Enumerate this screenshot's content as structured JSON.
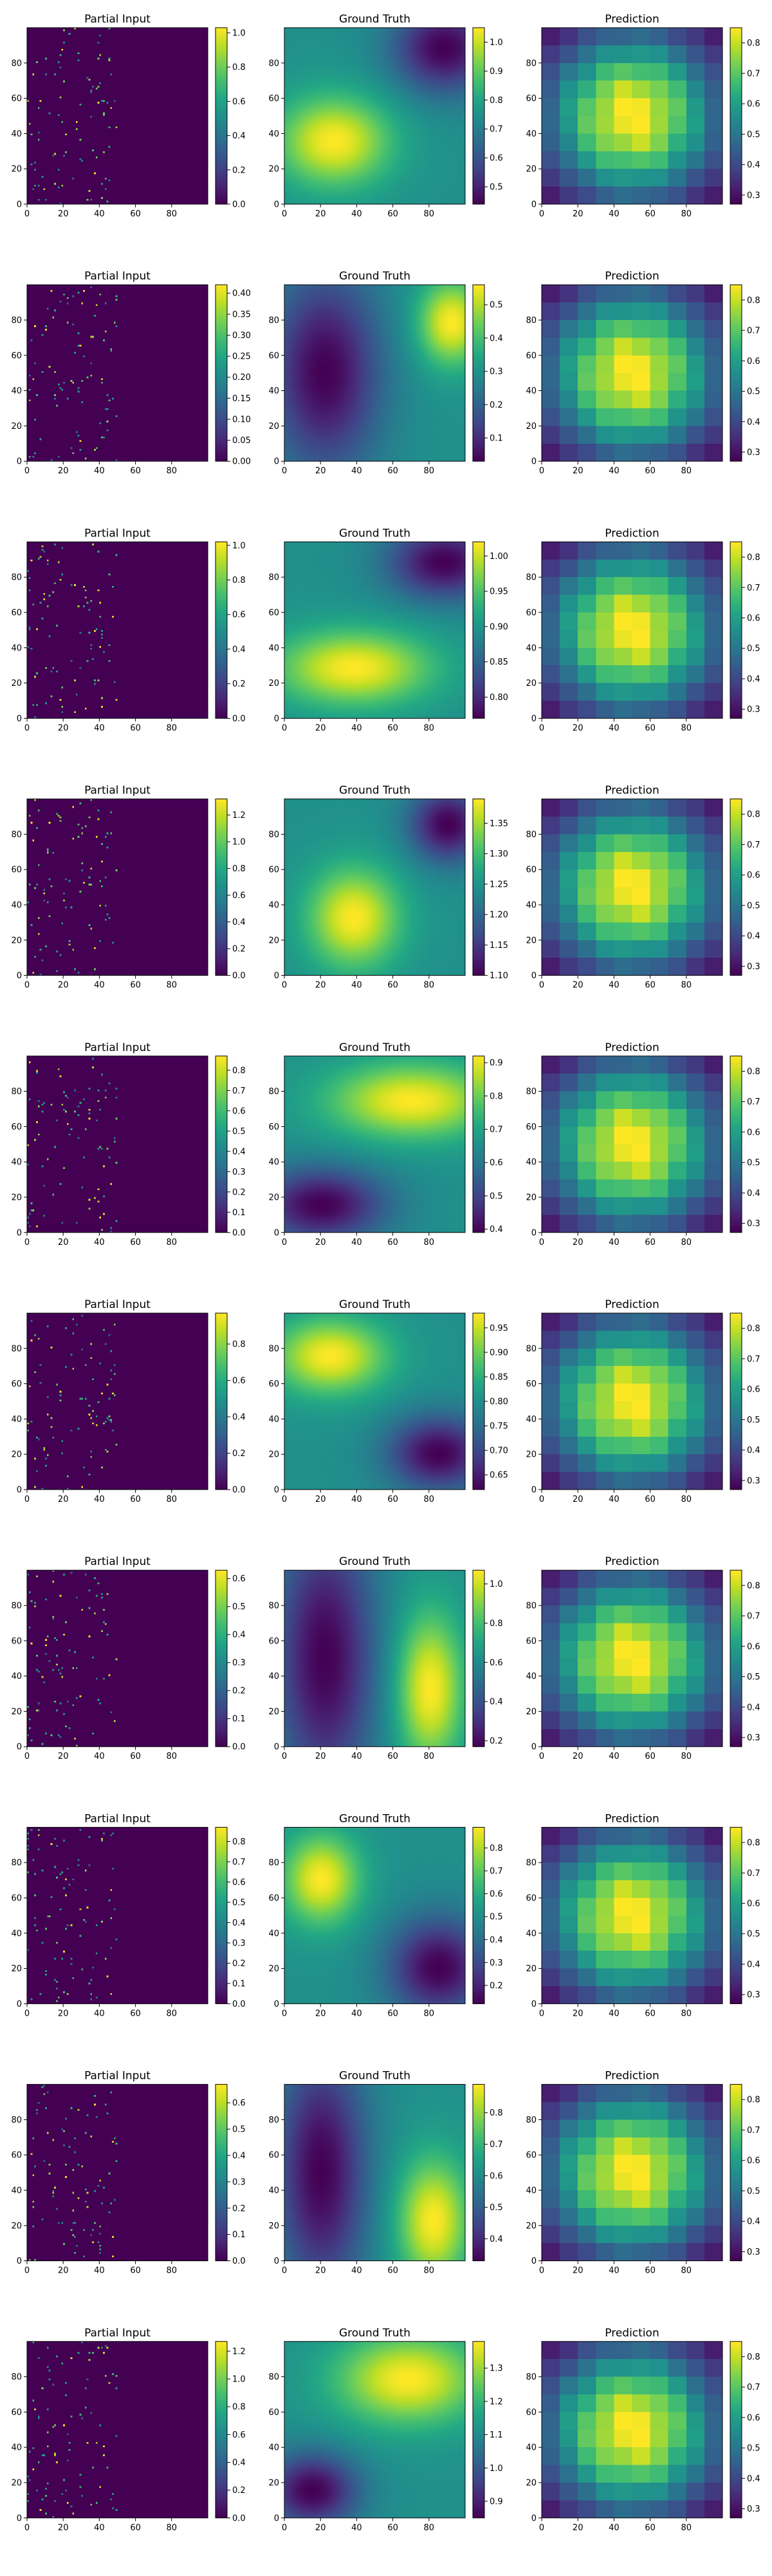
{
  "chart_data": {
    "type": "heatmap",
    "colormap": "viridis",
    "layout": "10 rows x 3 columns",
    "panel_titles": [
      "Partial Input",
      "Ground Truth",
      "Prediction"
    ],
    "x_ticks": [
      0,
      20,
      40,
      60,
      80
    ],
    "y_ticks": [
      0,
      20,
      40,
      60,
      80
    ],
    "grid_size": 100,
    "rows": [
      {
        "partial_input": {
          "colorbar_ticks": [
            "0.0",
            "0.2",
            "0.4",
            "0.6",
            "0.8",
            "1.0"
          ],
          "vmin": 0.0,
          "vmax": 1.03
        },
        "ground_truth": {
          "colorbar_ticks": [
            "0.5",
            "0.6",
            "0.7",
            "0.8",
            "0.9",
            "1.0"
          ],
          "vmin": 0.44,
          "vmax": 1.05,
          "blobs": [
            {
              "x": 27,
              "y": 35,
              "sx": 22,
              "sy": 18,
              "a": 1
            },
            {
              "x": 88,
              "y": 88,
              "sx": 20,
              "sy": 18,
              "a": -1
            }
          ]
        },
        "prediction": {
          "colorbar_ticks": [
            "0.3",
            "0.4",
            "0.5",
            "0.6",
            "0.7",
            "0.8"
          ],
          "vmin": 0.27,
          "vmax": 0.85
        }
      },
      {
        "partial_input": {
          "colorbar_ticks": [
            "0.00",
            "0.05",
            "0.10",
            "0.15",
            "0.20",
            "0.25",
            "0.30",
            "0.35",
            "0.40"
          ],
          "vmin": 0.0,
          "vmax": 0.42
        },
        "ground_truth": {
          "colorbar_ticks": [
            "0.1",
            "0.2",
            "0.3",
            "0.4",
            "0.5"
          ],
          "vmin": 0.03,
          "vmax": 0.56,
          "blobs": [
            {
              "x": 92,
              "y": 78,
              "sx": 13,
              "sy": 17,
              "a": 1
            },
            {
              "x": 22,
              "y": 50,
              "sx": 22,
              "sy": 40,
              "a": -1
            }
          ]
        },
        "prediction": {
          "colorbar_ticks": [
            "0.3",
            "0.4",
            "0.5",
            "0.6",
            "0.7",
            "0.8"
          ],
          "vmin": 0.27,
          "vmax": 0.85
        }
      },
      {
        "partial_input": {
          "colorbar_ticks": [
            "0.0",
            "0.2",
            "0.4",
            "0.6",
            "0.8",
            "1.0"
          ],
          "vmin": 0.0,
          "vmax": 1.02
        },
        "ground_truth": {
          "colorbar_ticks": [
            "0.80",
            "0.85",
            "0.90",
            "0.95",
            "1.00"
          ],
          "vmin": 0.77,
          "vmax": 1.02,
          "blobs": [
            {
              "x": 38,
              "y": 28,
              "sx": 30,
              "sy": 15,
              "a": 1
            },
            {
              "x": 88,
              "y": 88,
              "sx": 22,
              "sy": 15,
              "a": -1
            }
          ]
        },
        "prediction": {
          "colorbar_ticks": [
            "0.3",
            "0.4",
            "0.5",
            "0.6",
            "0.7",
            "0.8"
          ],
          "vmin": 0.27,
          "vmax": 0.85
        }
      },
      {
        "partial_input": {
          "colorbar_ticks": [
            "0.0",
            "0.2",
            "0.4",
            "0.6",
            "0.8",
            "1.0",
            "1.2"
          ],
          "vmin": 0.0,
          "vmax": 1.32
        },
        "ground_truth": {
          "colorbar_ticks": [
            "1.10",
            "1.15",
            "1.20",
            "1.25",
            "1.30",
            "1.35"
          ],
          "vmin": 1.1,
          "vmax": 1.39,
          "blobs": [
            {
              "x": 38,
              "y": 32,
              "sx": 18,
              "sy": 20,
              "a": 1
            },
            {
              "x": 90,
              "y": 85,
              "sx": 15,
              "sy": 15,
              "a": -1
            }
          ]
        },
        "prediction": {
          "colorbar_ticks": [
            "0.3",
            "0.4",
            "0.5",
            "0.6",
            "0.7",
            "0.8"
          ],
          "vmin": 0.27,
          "vmax": 0.85
        }
      },
      {
        "partial_input": {
          "colorbar_ticks": [
            "0.0",
            "0.1",
            "0.2",
            "0.3",
            "0.4",
            "0.5",
            "0.6",
            "0.7",
            "0.8"
          ],
          "vmin": 0.0,
          "vmax": 0.87
        },
        "ground_truth": {
          "colorbar_ticks": [
            "0.4",
            "0.5",
            "0.6",
            "0.7",
            "0.8",
            "0.9"
          ],
          "vmin": 0.39,
          "vmax": 0.92,
          "blobs": [
            {
              "x": 70,
              "y": 74,
              "sx": 32,
              "sy": 15,
              "a": 1
            },
            {
              "x": 20,
              "y": 15,
              "sx": 25,
              "sy": 15,
              "a": -1
            }
          ]
        },
        "prediction": {
          "colorbar_ticks": [
            "0.3",
            "0.4",
            "0.5",
            "0.6",
            "0.7",
            "0.8"
          ],
          "vmin": 0.27,
          "vmax": 0.85
        }
      },
      {
        "partial_input": {
          "colorbar_ticks": [
            "0.0",
            "0.2",
            "0.4",
            "0.6",
            "0.8"
          ],
          "vmin": 0.0,
          "vmax": 0.97
        },
        "ground_truth": {
          "colorbar_ticks": [
            "0.65",
            "0.70",
            "0.75",
            "0.80",
            "0.85",
            "0.90",
            "0.95"
          ],
          "vmin": 0.62,
          "vmax": 0.98,
          "blobs": [
            {
              "x": 25,
              "y": 75,
              "sx": 22,
              "sy": 15,
              "a": 1
            },
            {
              "x": 85,
              "y": 20,
              "sx": 20,
              "sy": 15,
              "a": -1
            }
          ]
        },
        "prediction": {
          "colorbar_ticks": [
            "0.3",
            "0.4",
            "0.5",
            "0.6",
            "0.7",
            "0.8"
          ],
          "vmin": 0.27,
          "vmax": 0.85
        }
      },
      {
        "partial_input": {
          "colorbar_ticks": [
            "0.0",
            "0.1",
            "0.2",
            "0.3",
            "0.4",
            "0.5",
            "0.6"
          ],
          "vmin": 0.0,
          "vmax": 0.63
        },
        "ground_truth": {
          "colorbar_ticks": [
            "0.2",
            "0.4",
            "0.6",
            "0.8",
            "1.0"
          ],
          "vmin": 0.17,
          "vmax": 1.07,
          "blobs": [
            {
              "x": 80,
              "y": 32,
              "sx": 13,
              "sy": 30,
              "a": 1
            },
            {
              "x": 22,
              "y": 50,
              "sx": 20,
              "sy": 55,
              "a": -1
            }
          ]
        },
        "prediction": {
          "colorbar_ticks": [
            "0.3",
            "0.4",
            "0.5",
            "0.6",
            "0.7",
            "0.8"
          ],
          "vmin": 0.27,
          "vmax": 0.85
        }
      },
      {
        "partial_input": {
          "colorbar_ticks": [
            "0.0",
            "0.1",
            "0.2",
            "0.3",
            "0.4",
            "0.5",
            "0.6",
            "0.7",
            "0.8"
          ],
          "vmin": 0.0,
          "vmax": 0.87
        },
        "ground_truth": {
          "colorbar_ticks": [
            "0.2",
            "0.3",
            "0.4",
            "0.5",
            "0.6",
            "0.7",
            "0.8"
          ],
          "vmin": 0.12,
          "vmax": 0.89,
          "blobs": [
            {
              "x": 20,
              "y": 70,
              "sx": 15,
              "sy": 18,
              "a": 1
            },
            {
              "x": 85,
              "y": 20,
              "sx": 20,
              "sy": 20,
              "a": -1
            }
          ]
        },
        "prediction": {
          "colorbar_ticks": [
            "0.3",
            "0.4",
            "0.5",
            "0.6",
            "0.7",
            "0.8"
          ],
          "vmin": 0.27,
          "vmax": 0.85
        }
      },
      {
        "partial_input": {
          "colorbar_ticks": [
            "0.0",
            "0.1",
            "0.2",
            "0.3",
            "0.4",
            "0.5",
            "0.6"
          ],
          "vmin": 0.0,
          "vmax": 0.67
        },
        "ground_truth": {
          "colorbar_ticks": [
            "0.4",
            "0.5",
            "0.6",
            "0.7",
            "0.8"
          ],
          "vmin": 0.33,
          "vmax": 0.89,
          "blobs": [
            {
              "x": 82,
              "y": 22,
              "sx": 14,
              "sy": 25,
              "a": 1
            },
            {
              "x": 20,
              "y": 50,
              "sx": 18,
              "sy": 50,
              "a": -1
            }
          ]
        },
        "prediction": {
          "colorbar_ticks": [
            "0.3",
            "0.4",
            "0.5",
            "0.6",
            "0.7",
            "0.8"
          ],
          "vmin": 0.27,
          "vmax": 0.85
        }
      },
      {
        "partial_input": {
          "colorbar_ticks": [
            "0.0",
            "0.2",
            "0.4",
            "0.6",
            "0.8",
            "1.0",
            "1.2"
          ],
          "vmin": 0.0,
          "vmax": 1.27
        },
        "ground_truth": {
          "colorbar_ticks": [
            "0.9",
            "1.0",
            "1.1",
            "1.2",
            "1.3"
          ],
          "vmin": 0.85,
          "vmax": 1.38,
          "blobs": [
            {
              "x": 68,
              "y": 78,
              "sx": 28,
              "sy": 18,
              "a": 1
            },
            {
              "x": 15,
              "y": 15,
              "sx": 18,
              "sy": 15,
              "a": -1
            }
          ]
        },
        "prediction": {
          "colorbar_ticks": [
            "0.3",
            "0.4",
            "0.5",
            "0.6",
            "0.7",
            "0.8"
          ],
          "vmin": 0.27,
          "vmax": 0.85
        }
      }
    ]
  }
}
